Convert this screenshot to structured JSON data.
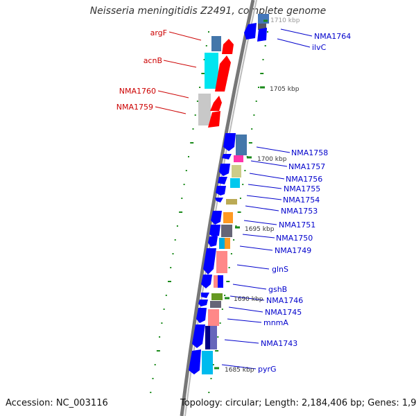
{
  "title": "Neisseria meningitidis Z2491, complete genome",
  "footer": {
    "accession": "Accession: NC_003116",
    "summary": "Topology: circular; Length: 2,184,406 bp; Genes: 1,979"
  },
  "colors": {
    "forward_red": "#ff0000",
    "reverse_blue": "#0000ff",
    "label_red": "#cc0000",
    "label_blue": "#0000cc",
    "backbone_gray": "#888888",
    "tick_green": "#1a8a1a"
  },
  "ruler_labels": [
    "1710 kbp",
    "1705 kbp",
    "1700 kbp",
    "1695 kbp",
    "1690 kbp",
    "1685 kbp"
  ],
  "gene_labels_left": [
    "argF",
    "acnB",
    "NMA1760",
    "NMA1759"
  ],
  "gene_labels_right": [
    "NMA1764",
    "ilvC",
    "NMA1758",
    "NMA1757",
    "NMA1756",
    "NMA1755",
    "NMA1754",
    "NMA1753",
    "NMA1751",
    "NMA1750",
    "NMA1749",
    "glnS",
    "gshB",
    "NMA1746",
    "NMA1745",
    "mnmA",
    "NMA1743",
    "pyrG"
  ]
}
